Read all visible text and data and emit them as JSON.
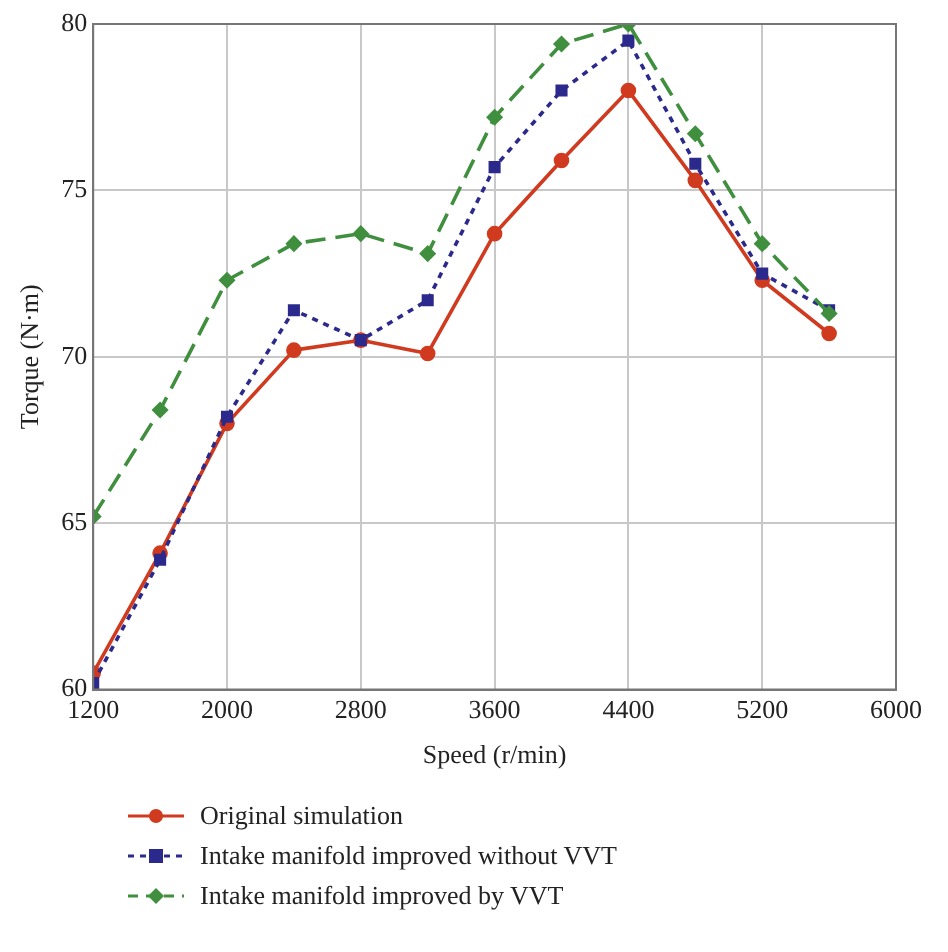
{
  "chart_data": {
    "type": "line",
    "xlabel": "Speed (r/min)",
    "ylabel": "Torque (N·m)",
    "x": [
      1200,
      1600,
      2000,
      2400,
      2800,
      3200,
      3600,
      4000,
      4400,
      4800,
      5200,
      5600
    ],
    "xlim": [
      1200,
      6000
    ],
    "xticks": [
      1200,
      2000,
      2800,
      3600,
      4400,
      5200,
      6000
    ],
    "ylim": [
      60,
      80
    ],
    "yticks": [
      60,
      65,
      70,
      75,
      80
    ],
    "grid": true,
    "legend": "bottom",
    "series": [
      {
        "name": "Original simulation",
        "color": "#d03a1e",
        "marker": "circle",
        "line_style": "solid",
        "values": [
          60.5,
          64.1,
          68.0,
          70.2,
          70.5,
          70.1,
          73.7,
          75.9,
          78.0,
          75.3,
          72.3,
          70.7
        ]
      },
      {
        "name": "Intake manifold improved without VVT",
        "color": "#2b2a8c",
        "marker": "square",
        "line_style": "dotted",
        "values": [
          60.2,
          63.9,
          68.2,
          71.4,
          70.5,
          71.7,
          75.7,
          78.0,
          79.5,
          75.8,
          72.5,
          71.4
        ]
      },
      {
        "name": "Intake manifold improved by VVT",
        "color": "#3f8f3f",
        "marker": "diamond",
        "line_style": "dashed",
        "values": [
          65.2,
          68.4,
          72.3,
          73.4,
          73.7,
          73.1,
          77.2,
          79.4,
          80.0,
          76.7,
          73.4,
          71.3
        ]
      }
    ]
  }
}
